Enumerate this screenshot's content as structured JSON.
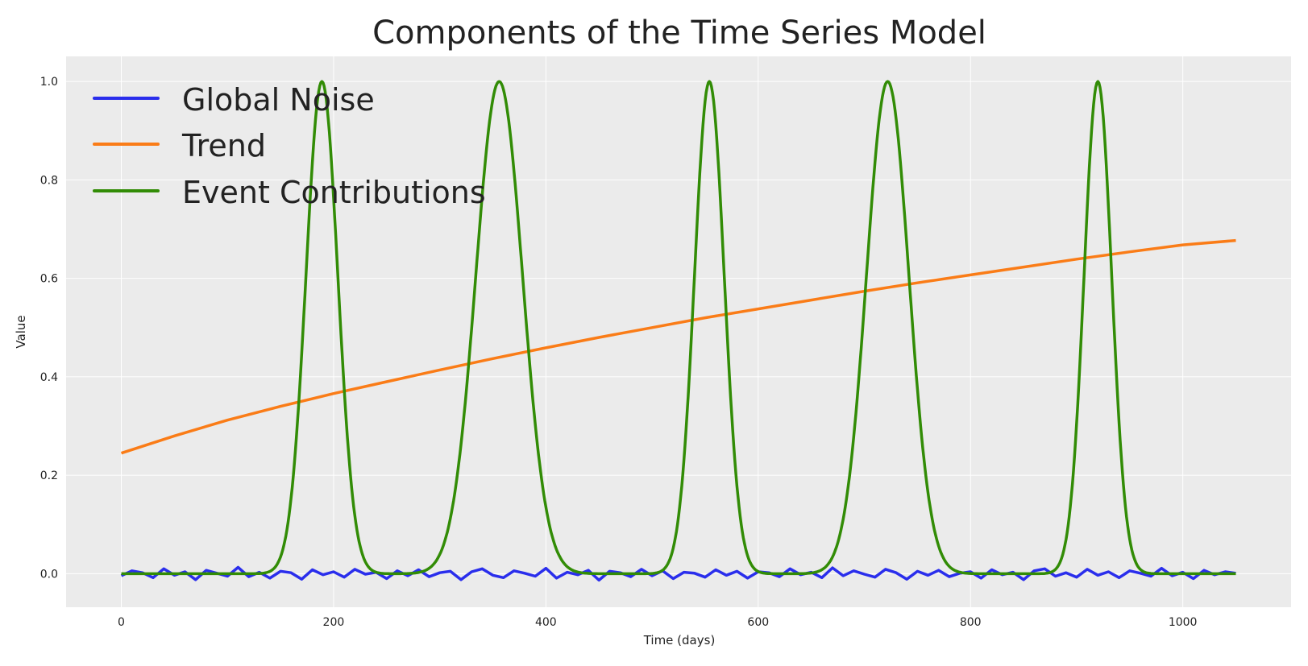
{
  "chart_data": {
    "type": "line",
    "title": "Components of the Time Series Model",
    "xlabel": "Time (days)",
    "ylabel": "Value",
    "xlim": [
      -52,
      1102
    ],
    "ylim": [
      -0.068,
      1.051
    ],
    "xticks": [
      0,
      200,
      400,
      600,
      800,
      1000
    ],
    "xtick_labels": [
      "0",
      "200",
      "400",
      "600",
      "800",
      "1000"
    ],
    "yticks": [
      0.0,
      0.2,
      0.4,
      0.6,
      0.8,
      1.0
    ],
    "ytick_labels": [
      "0.0",
      "0.2",
      "0.4",
      "0.6",
      "0.8",
      "1.0"
    ],
    "grid": true,
    "legend_position": "top-left",
    "background": "#ebebeb",
    "series": [
      {
        "name": "Global Noise",
        "color": "#2a2eec",
        "x_step": 10,
        "x_start": 0,
        "values": [
          -0.004,
          0.006,
          0.002,
          -0.008,
          0.01,
          -0.003,
          0.004,
          -0.012,
          0.007,
          0.001,
          -0.005,
          0.013,
          -0.006,
          0.003,
          -0.009,
          0.005,
          0.002,
          -0.011,
          0.008,
          -0.002,
          0.004,
          -0.007,
          0.009,
          -0.001,
          0.003,
          -0.01,
          0.006,
          -0.004,
          0.008,
          -0.006,
          0.002,
          0.005,
          -0.012,
          0.004,
          0.01,
          -0.003,
          -0.008,
          0.006,
          0.001,
          -0.005,
          0.011,
          -0.009,
          0.003,
          -0.002,
          0.007,
          -0.013,
          0.005,
          0.002,
          -0.006,
          0.009,
          -0.004,
          0.006,
          -0.01,
          0.003,
          0.001,
          -0.007,
          0.008,
          -0.003,
          0.005,
          -0.009,
          0.004,
          0.002,
          -0.006,
          0.01,
          -0.002,
          0.003,
          -0.008,
          0.012,
          -0.004,
          0.006,
          -0.001,
          -0.007,
          0.009,
          0.002,
          -0.011,
          0.005,
          -0.003,
          0.007,
          -0.006,
          0.001,
          0.004,
          -0.009,
          0.008,
          -0.002,
          0.003,
          -0.012,
          0.006,
          0.01,
          -0.005,
          0.002,
          -0.007,
          0.009,
          -0.003,
          0.004,
          -0.008,
          0.006,
          0.001,
          -0.005,
          0.011,
          -0.004,
          0.003,
          -0.01,
          0.007,
          -0.002,
          0.004,
          0.001
        ]
      },
      {
        "name": "Trend",
        "color": "#fa7c17",
        "x": [
          0,
          50,
          100,
          150,
          200,
          250,
          300,
          350,
          400,
          450,
          500,
          550,
          600,
          650,
          700,
          750,
          800,
          850,
          900,
          950,
          1000,
          1050
        ],
        "values": [
          0.245,
          0.28,
          0.312,
          0.34,
          0.366,
          0.39,
          0.414,
          0.437,
          0.459,
          0.48,
          0.5,
          0.52,
          0.538,
          0.556,
          0.574,
          0.591,
          0.607,
          0.623,
          0.639,
          0.654,
          0.668,
          0.677
        ]
      },
      {
        "name": "Event Contributions",
        "color": "#328c06",
        "x_range": [
          0,
          1050
        ],
        "events": [
          {
            "center": 189,
            "amplitude": 1.0,
            "sigma": 15
          },
          {
            "center": 356,
            "amplitude": 1.0,
            "sigma": 22
          },
          {
            "center": 554,
            "amplitude": 1.0,
            "sigma": 14
          },
          {
            "center": 722,
            "amplitude": 1.0,
            "sigma": 20
          },
          {
            "center": 920,
            "amplitude": 1.0,
            "sigma": 13
          }
        ]
      }
    ]
  }
}
